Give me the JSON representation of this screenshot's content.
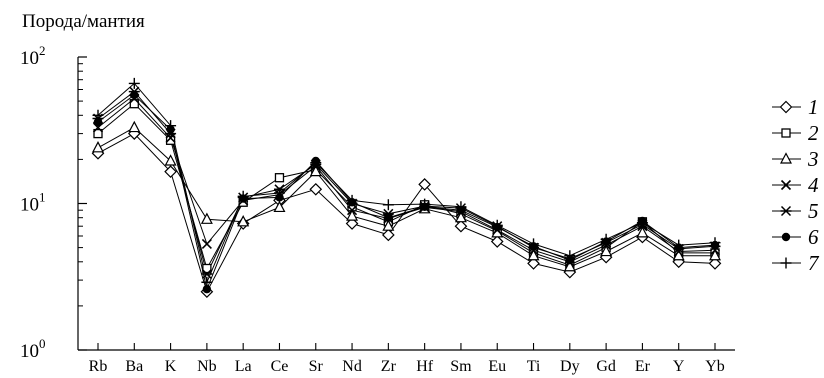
{
  "chart_data": {
    "type": "line",
    "ylabel": "Порода/мантия",
    "xlabel": "",
    "yscale": "log",
    "ylim": [
      1,
      100
    ],
    "yticks": [
      {
        "value": 1,
        "base": "10",
        "exp": "0"
      },
      {
        "value": 10,
        "base": "10",
        "exp": "1"
      },
      {
        "value": 100,
        "base": "10",
        "exp": "2"
      }
    ],
    "categories": [
      "Rb",
      "Ba",
      "K",
      "Nb",
      "La",
      "Ce",
      "Sr",
      "Nd",
      "Zr",
      "Hf",
      "Sm",
      "Eu",
      "Ti",
      "Dy",
      "Gd",
      "Er",
      "Y",
      "Yb"
    ],
    "legend_position": "right",
    "series": [
      {
        "name": "1",
        "marker": "diamond-open",
        "values": [
          22,
          30,
          16.5,
          2.5,
          7.3,
          10.5,
          12.5,
          7.3,
          6.1,
          13.5,
          7.0,
          5.5,
          3.9,
          3.4,
          4.3,
          5.9,
          4.0,
          3.9
        ]
      },
      {
        "name": "2",
        "marker": "square-open",
        "values": [
          30,
          48,
          27,
          3.6,
          10.2,
          15,
          17,
          9.5,
          7.5,
          9.8,
          8.5,
          6.5,
          4.6,
          3.8,
          5.0,
          7.5,
          4.6,
          4.6
        ]
      },
      {
        "name": "3",
        "marker": "triangle-open",
        "values": [
          24,
          33,
          19.5,
          7.8,
          7.5,
          9.4,
          16.5,
          8.2,
          7.0,
          9.2,
          8.0,
          6.3,
          4.4,
          3.7,
          4.7,
          6.3,
          4.4,
          4.4
        ]
      },
      {
        "name": "4",
        "marker": "x",
        "values": [
          33,
          52,
          28,
          5.3,
          10.5,
          11.5,
          18,
          9.0,
          7.9,
          9.4,
          8.8,
          6.6,
          4.8,
          4.0,
          5.2,
          7.0,
          4.7,
          4.8
        ]
      },
      {
        "name": "5",
        "marker": "asterisk",
        "values": [
          38,
          58,
          30,
          3.3,
          11,
          12.5,
          18.5,
          10,
          8.5,
          9.6,
          9.3,
          7.0,
          5.0,
          4.2,
          5.4,
          7.2,
          4.9,
          5.1
        ]
      },
      {
        "name": "6",
        "marker": "circle-filled",
        "values": [
          36,
          55,
          32,
          2.6,
          10.8,
          11,
          19.5,
          10.2,
          8.0,
          9.5,
          9.0,
          6.9,
          5.1,
          4.1,
          5.5,
          7.6,
          5.0,
          5.2
        ]
      },
      {
        "name": "7",
        "marker": "plus",
        "values": [
          40,
          66,
          34,
          2.9,
          11.2,
          11.8,
          19,
          10.5,
          9.8,
          9.9,
          9.5,
          7.1,
          5.3,
          4.4,
          5.7,
          7.4,
          5.2,
          5.4
        ]
      }
    ]
  }
}
